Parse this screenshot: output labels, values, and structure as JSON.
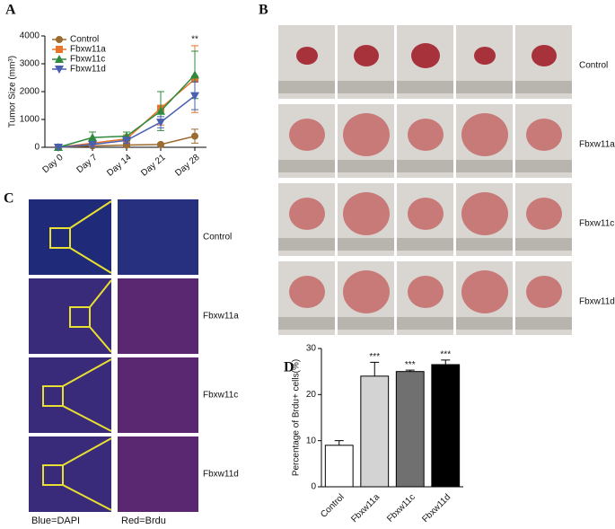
{
  "panel_labels": [
    "A",
    "B",
    "C",
    "D"
  ],
  "photo_rows": [
    "Control",
    "Fbxw11a",
    "Fbxw11c",
    "Fbxw11d"
  ],
  "stain_rows": [
    "Control",
    "Fbxw11a",
    "Fbxw11c",
    "Fbxw11d"
  ],
  "stain_legend": [
    {
      "text": "Blue=DAPI",
      "color": "#2a2ab0"
    },
    {
      "text": "Red=Brdu",
      "color": "#c0107a"
    }
  ],
  "chart_data": [
    {
      "type": "line",
      "y_label": "Tumor Size (mm³)",
      "categories": [
        "Day 0",
        "Day 7",
        "Day 14",
        "Day 21",
        "Day 28"
      ],
      "series": [
        {
          "name": "Control",
          "color": "#9c6b30",
          "marker": "circle",
          "values": [
            0,
            50,
            80,
            100,
            400
          ],
          "errors": [
            0,
            20,
            30,
            40,
            250
          ]
        },
        {
          "name": "Fbxw11a",
          "color": "#e8742a",
          "marker": "square",
          "values": [
            0,
            150,
            300,
            1400,
            2450
          ],
          "errors": [
            0,
            100,
            150,
            600,
            1200
          ]
        },
        {
          "name": "Fbxw11c",
          "color": "#2e8b3e",
          "marker": "triangle",
          "values": [
            0,
            350,
            400,
            1300,
            2600
          ],
          "errors": [
            0,
            200,
            150,
            700,
            850
          ]
        },
        {
          "name": "Fbxw11d",
          "color": "#4a5fb0",
          "marker": "triangle-down",
          "values": [
            0,
            100,
            250,
            900,
            1850
          ],
          "errors": [
            0,
            80,
            100,
            200,
            500
          ]
        }
      ],
      "annotation": "**",
      "annotation_color": "#e8742a",
      "ylim": [
        0,
        4000
      ],
      "yticks": [
        0,
        1000,
        2000,
        3000,
        4000
      ]
    },
    {
      "type": "bar",
      "y_label": "Percentage of Brdu+ cells(%)",
      "categories": [
        "Control",
        "Fbxw11a",
        "Fbxw11c",
        "Fbxw11d"
      ],
      "values": [
        9,
        24,
        25,
        26.5
      ],
      "errors": [
        1,
        3,
        0.3,
        1
      ],
      "colors": [
        "#ffffff",
        "#d3d3d3",
        "#707070",
        "#000000"
      ],
      "annotations": [
        null,
        "***",
        "***",
        "***"
      ],
      "ylim": [
        0,
        30
      ],
      "yticks": [
        0,
        10,
        20,
        30
      ]
    }
  ]
}
